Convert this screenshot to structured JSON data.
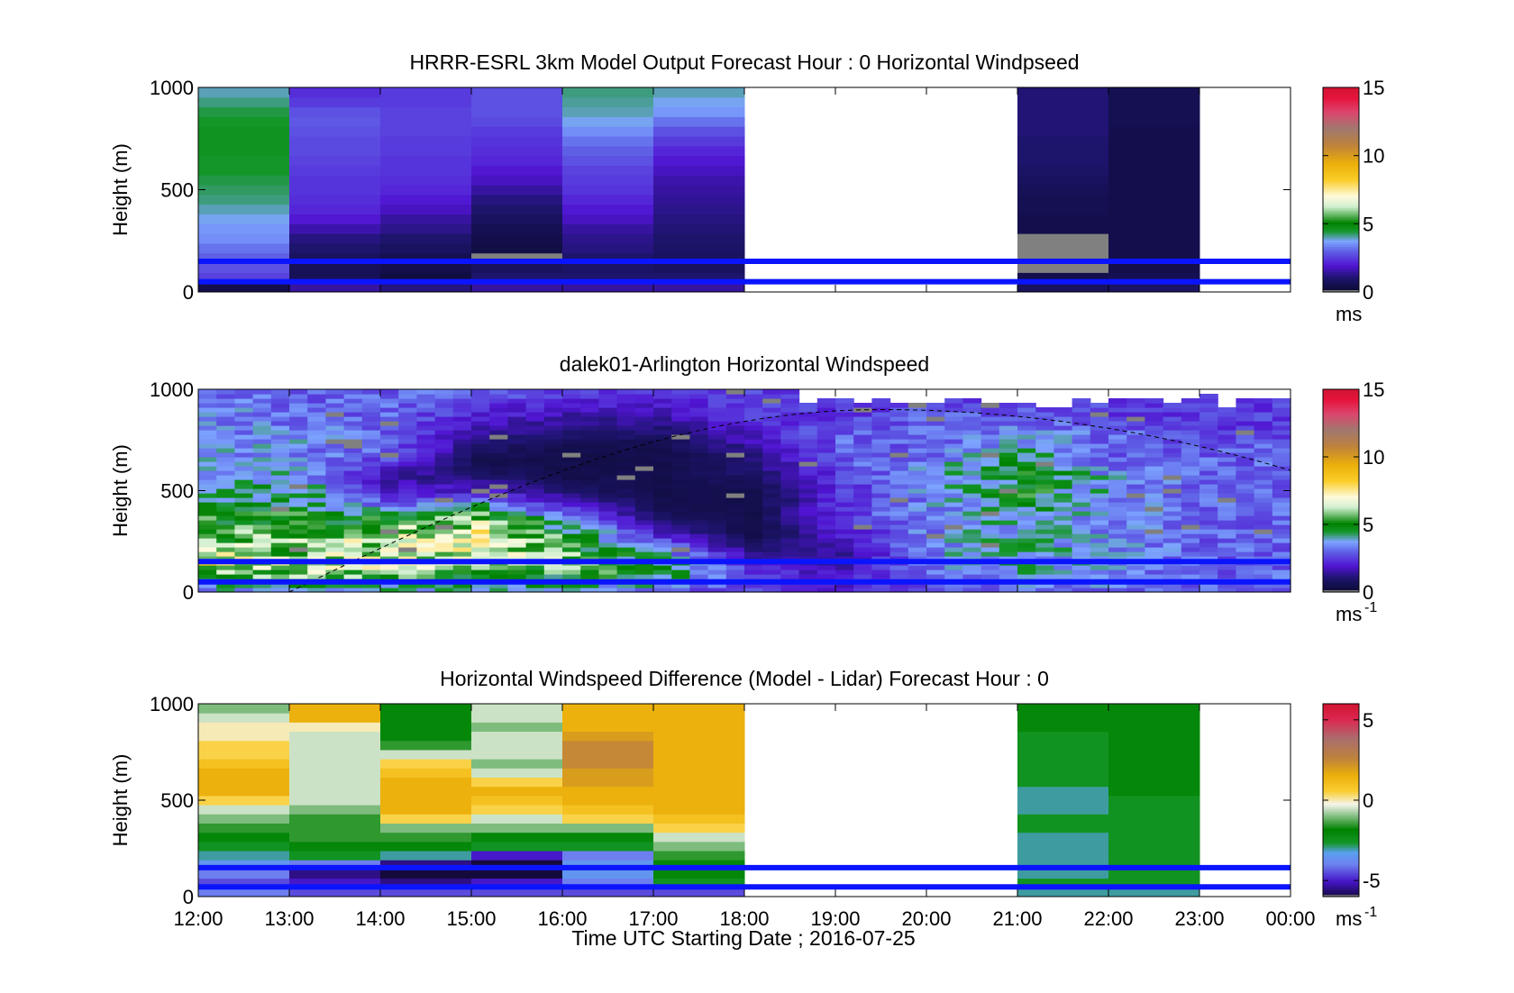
{
  "figure": {
    "xlabel": "Time UTC  Starting Date ; 2016-07-25",
    "x_ticks": [
      "12:00",
      "13:00",
      "14:00",
      "15:00",
      "16:00",
      "17:00",
      "18:00",
      "19:00",
      "20:00",
      "21:00",
      "22:00",
      "23:00",
      "00:00"
    ]
  },
  "colors": {
    "guide_line": "#0a14ff",
    "missing": "#808080"
  },
  "chart_data": [
    {
      "type": "heatmap",
      "title": "HRRR-ESRL 3km Model Output   Forecast Hour : 0 Horizontal Windpseed",
      "ylabel": "Height (m)",
      "ylim": [
        0,
        1000
      ],
      "y_ticks": [
        "0",
        "500",
        "1000"
      ],
      "colorbar": {
        "ticks": [
          "0",
          "5",
          "10",
          "15"
        ],
        "range": [
          0,
          15
        ],
        "unit": "ms",
        "unit_sup": ""
      },
      "guide_lines_m": [
        150,
        50
      ],
      "columns": [
        {
          "hour": 12,
          "values": [
            0.5,
            2.6,
            2.8,
            3.0,
            3.2,
            3.5,
            3.6,
            3.8,
            4.0,
            4.2,
            4.3,
            4.4,
            4.5,
            4.5,
            4.6,
            4.6,
            4.6,
            4.5,
            4.4,
            4.2,
            4.0
          ]
        },
        {
          "hour": 13,
          "values": [
            1.5,
            0.7,
            0.7,
            0.8,
            1.0,
            1.2,
            1.6,
            2.0,
            2.2,
            2.3,
            2.4,
            2.4,
            2.5,
            2.6,
            2.7,
            2.7,
            2.8,
            2.9,
            2.8,
            2.5,
            2.3
          ]
        },
        {
          "hour": 14,
          "values": [
            1.2,
            0.3,
            0.5,
            0.6,
            0.8,
            1.0,
            1.3,
            1.5,
            1.8,
            2.0,
            2.2,
            2.3,
            2.4,
            2.4,
            2.5,
            2.5,
            2.6,
            2.6,
            2.6,
            2.5,
            2.5
          ]
        },
        {
          "hour": 15,
          "values": [
            1.5,
            1.0,
            0.8,
            0,
            0.4,
            0.5,
            0.6,
            0.8,
            1.0,
            1.2,
            1.5,
            1.8,
            2.0,
            2.2,
            2.3,
            2.4,
            2.5,
            2.7,
            2.8,
            2.8,
            2.8
          ]
        },
        {
          "hour": 16,
          "values": [
            1.5,
            1.0,
            0.9,
            1.0,
            1.2,
            1.3,
            1.5,
            1.8,
            2.0,
            2.2,
            2.4,
            2.5,
            2.6,
            2.8,
            3.0,
            3.2,
            3.5,
            3.8,
            4.0,
            4.1,
            4.2
          ]
        },
        {
          "hour": 17,
          "values": [
            1.5,
            1.0,
            0.8,
            0.8,
            0.9,
            1.0,
            1.1,
            1.2,
            1.3,
            1.4,
            1.5,
            1.6,
            1.8,
            2.0,
            2.2,
            2.5,
            2.8,
            3.2,
            3.6,
            3.8,
            4.0
          ]
        },
        {
          "hour": 18,
          "values": null
        },
        {
          "hour": 19,
          "values": null
        },
        {
          "hour": 20,
          "values": null
        },
        {
          "hour": 21,
          "values": [
            0.8,
            0.5,
            0,
            0,
            0,
            0,
            0.5,
            0.5,
            0.6,
            0.6,
            0.7,
            0.8,
            0.9,
            1.0,
            1.0,
            1.0,
            1.1,
            1.1,
            1.1,
            1.1,
            1.1
          ]
        },
        {
          "hour": 22,
          "values": [
            0.9,
            0.6,
            0.5,
            0.5,
            0.5,
            0.5,
            0.5,
            0.5,
            0.5,
            0.5,
            0.5,
            0.5,
            0.5,
            0.5,
            0.5,
            0.5,
            0.5,
            0.6,
            0.6,
            0.6,
            0.6
          ]
        },
        {
          "hour": 23,
          "values": null
        }
      ]
    },
    {
      "type": "heatmap",
      "title": "dalek01-Arlington  Horizontal Windspeed",
      "ylabel": "Height (m)",
      "ylim": [
        0,
        1000
      ],
      "y_ticks": [
        "0",
        "500",
        "1000"
      ],
      "colorbar": {
        "ticks": [
          "0",
          "5",
          "10",
          "15"
        ],
        "range": [
          0,
          15
        ],
        "unit": "ms",
        "unit_sup": "-1"
      },
      "guide_lines_m": [
        150,
        50
      ],
      "time_range_hours": [
        12,
        23.8
      ],
      "annotation": "dashed arc from about 13:00 near 0 m rising to about 900 m at 19:00-21:00 and falling to about 600 m at 00:00",
      "profiles": [
        {
          "hour": 12.0,
          "values": [
            3.5,
            5.0,
            7.0,
            6.0,
            5.5,
            5.0,
            4.5,
            4.0,
            3.5,
            3.5,
            3.5,
            3.5,
            3.5,
            3.5,
            3.0
          ]
        },
        {
          "hour": 13.0,
          "values": [
            3.5,
            5.5,
            6.5,
            6.0,
            5.5,
            5.0,
            4.5,
            4.5,
            4.0,
            3.5,
            3.5,
            3.5,
            3.0,
            3.0,
            3.0
          ]
        },
        {
          "hour": 14.0,
          "values": [
            3.5,
            5.5,
            6.5,
            6.5,
            6.5,
            5.0,
            3.0,
            2.0,
            1.5,
            2.5,
            3.0,
            3.0,
            3.0,
            3.0,
            3.0
          ]
        },
        {
          "hour": 15.0,
          "values": [
            3.5,
            5.0,
            6.0,
            6.5,
            7.0,
            6.0,
            4.0,
            2.0,
            1.0,
            0.5,
            1.0,
            1.5,
            2.0,
            2.5,
            3.0
          ]
        },
        {
          "hour": 16.0,
          "values": [
            3.5,
            5.0,
            5.5,
            5.5,
            5.0,
            3.5,
            2.0,
            1.0,
            0.5,
            0.5,
            0.5,
            1.0,
            1.5,
            2.0,
            2.5
          ]
        },
        {
          "hour": 17.0,
          "values": [
            3.0,
            4.5,
            4.5,
            3.5,
            2.0,
            1.0,
            0.5,
            0.5,
            0.5,
            0.5,
            0.5,
            1.0,
            1.5,
            2.0,
            2.5
          ]
        },
        {
          "hour": 18.0,
          "values": [
            2.5,
            2.5,
            2.0,
            1.0,
            0.5,
            0.5,
            0.5,
            0.5,
            1.0,
            1.0,
            1.5,
            2.0,
            2.5,
            2.5,
            2.5
          ]
        },
        {
          "hour": 19.0,
          "values": [
            2.0,
            2.0,
            1.5,
            1.5,
            2.0,
            2.5,
            2.5,
            2.5,
            2.5,
            3.0,
            3.0,
            3.0,
            2.5,
            2.5,
            2.5
          ]
        },
        {
          "hour": 20.0,
          "values": [
            2.5,
            3.0,
            3.5,
            3.5,
            3.5,
            3.5,
            3.5,
            3.5,
            3.5,
            3.5,
            3.0,
            3.0,
            3.0,
            2.5,
            2.5
          ]
        },
        {
          "hour": 21.0,
          "values": [
            3.0,
            4.0,
            4.0,
            4.0,
            4.0,
            4.0,
            4.5,
            5.0,
            5.0,
            4.5,
            4.0,
            3.5,
            3.0,
            3.0,
            3.0
          ]
        },
        {
          "hour": 22.0,
          "values": [
            3.0,
            3.5,
            3.5,
            3.5,
            3.5,
            3.5,
            3.5,
            3.5,
            3.5,
            3.0,
            3.0,
            3.0,
            2.5,
            2.5,
            2.5
          ]
        },
        {
          "hour": 23.0,
          "values": [
            3.0,
            3.0,
            3.0,
            3.0,
            3.0,
            3.0,
            3.0,
            3.0,
            3.0,
            3.0,
            3.0,
            2.5,
            2.5,
            2.5,
            2.5
          ]
        }
      ]
    },
    {
      "type": "heatmap",
      "title": "Horizontal Windspeed Difference (Model - Lidar) Forecast Hour : 0",
      "ylabel": "Height (m)",
      "ylim": [
        0,
        1000
      ],
      "y_ticks": [
        "0",
        "500",
        "1000"
      ],
      "colorbar": {
        "ticks": [
          "-5",
          "0",
          "5"
        ],
        "range": [
          -6,
          6
        ],
        "unit": "ms",
        "unit_sup": "-1"
      },
      "guide_lines_m": [
        150,
        50
      ],
      "columns": [
        {
          "hour": 12,
          "values": [
            -4.0,
            -4.5,
            -4.0,
            -3.5,
            -3.0,
            -2.5,
            -2.0,
            -1.5,
            -1.0,
            -0.5,
            0.5,
            1.5,
            1.5,
            1.5,
            1.0,
            0.5,
            0.5,
            0.0,
            0.0,
            -0.5,
            -1.0
          ]
        },
        {
          "hour": 13,
          "values": [
            -4.5,
            -5.0,
            -5.5,
            -4.0,
            -2.5,
            -2.0,
            -1.5,
            -1.5,
            -1.5,
            -1.0,
            -0.5,
            -0.5,
            -0.5,
            -0.5,
            -0.5,
            -0.5,
            -0.5,
            -0.5,
            0.0,
            1.5,
            1.5
          ]
        },
        {
          "hour": 14,
          "values": [
            -4.5,
            -5.5,
            -6.5,
            -5.5,
            -3.0,
            -2.0,
            -1.5,
            -1.0,
            0.5,
            1.5,
            1.5,
            1.5,
            1.5,
            1.0,
            0.5,
            -0.5,
            -1.5,
            -2.0,
            -2.0,
            -2.0,
            -2.0
          ]
        },
        {
          "hour": 15,
          "values": [
            -4.5,
            -5.0,
            -6.5,
            -6.0,
            -5.0,
            -2.5,
            -2.0,
            -1.0,
            -0.5,
            0.5,
            1.0,
            1.5,
            0.5,
            -0.5,
            -1.0,
            -0.5,
            -0.5,
            -0.5,
            -1.0,
            -0.5,
            -0.5
          ]
        },
        {
          "hour": 16,
          "values": [
            -4.5,
            -4.0,
            -3.5,
            -3.5,
            -4.0,
            -2.5,
            -2.0,
            -1.0,
            0.5,
            1.0,
            1.5,
            1.5,
            2.0,
            2.0,
            2.5,
            2.5,
            2.5,
            2.0,
            1.5,
            1.5,
            1.5
          ]
        },
        {
          "hour": 17,
          "values": [
            -4.5,
            -2.5,
            -2.0,
            -2.0,
            -1.5,
            -1.0,
            -0.5,
            0.5,
            1.0,
            1.5,
            1.5,
            1.5,
            1.5,
            1.5,
            1.5,
            1.5,
            1.5,
            1.5,
            1.5,
            1.5,
            1.5
          ]
        },
        {
          "hour": 18,
          "values": null
        },
        {
          "hour": 19,
          "values": null
        },
        {
          "hour": 20,
          "values": null
        },
        {
          "hour": 21,
          "values": [
            -3.0,
            -2.5,
            -3.0,
            -3.0,
            -3.0,
            -3.0,
            -3.0,
            -2.5,
            -2.5,
            -3.0,
            -3.0,
            -3.0,
            -2.5,
            -2.5,
            -2.5,
            -2.5,
            -2.5,
            -2.5,
            -2.0,
            -2.0,
            -2.0
          ]
        },
        {
          "hour": 22,
          "values": [
            -3.0,
            -2.5,
            -2.5,
            -2.5,
            -2.5,
            -2.5,
            -2.5,
            -2.5,
            -2.5,
            -2.5,
            -2.5,
            -2.0,
            -2.0,
            -2.0,
            -2.0,
            -2.0,
            -2.0,
            -2.0,
            -2.0,
            -2.0,
            -2.0
          ]
        },
        {
          "hour": 23,
          "values": null
        }
      ]
    }
  ]
}
